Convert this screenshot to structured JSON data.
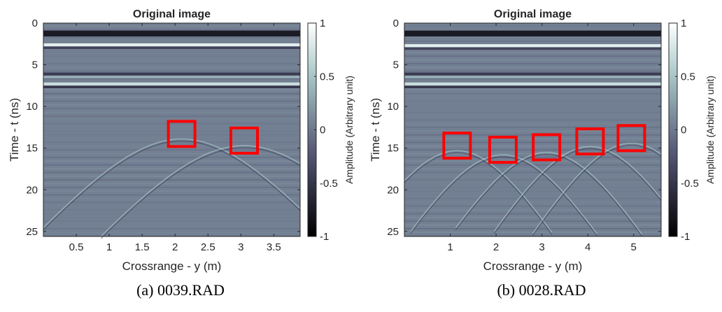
{
  "chart_data": [
    {
      "type": "heatmap",
      "title": "Original image",
      "xlabel": "Crossrange - y (m)",
      "ylabel": "Time - t (ns)",
      "colorbar_label": "Amplitude (Arbitrary unit)",
      "xlim": [
        0,
        3.9
      ],
      "ylim": [
        0,
        25.6
      ],
      "y_reversed": true,
      "x_ticks": [
        0.5,
        1,
        1.5,
        2,
        2.5,
        3,
        3.5
      ],
      "x_tick_labels": [
        "0.5",
        "1",
        "1.5",
        "2",
        "2.5",
        "3",
        "3.5"
      ],
      "y_ticks": [
        0,
        5,
        10,
        15,
        20,
        25
      ],
      "y_tick_labels": [
        "0",
        "5",
        "10",
        "15",
        "20",
        "25"
      ],
      "clim": [
        -1,
        1
      ],
      "colorbar_ticks": [
        1,
        0.5,
        0,
        -0.5,
        -1
      ],
      "colorbar_tick_labels": [
        "1",
        "0.5",
        "0",
        "-0.5",
        "-1"
      ],
      "colormap": "bone",
      "markers_color": "#ff0000",
      "target_markers": [
        {
          "x_center": 2.1,
          "t_center": 13.3
        },
        {
          "x_center": 3.05,
          "t_center": 14.1
        }
      ],
      "reflection_bands_t": [
        2.6,
        6.1,
        7.3
      ]
    },
    {
      "type": "heatmap",
      "title": "Original image",
      "xlabel": "Crossrange - y (m)",
      "ylabel": "Time - t (ns)",
      "colorbar_label": "Amplitude (Arbitrary unit)",
      "xlim": [
        0,
        5.6
      ],
      "ylim": [
        0,
        25.6
      ],
      "y_reversed": true,
      "x_ticks": [
        1,
        2,
        3,
        4,
        5
      ],
      "x_tick_labels": [
        "1",
        "2",
        "3",
        "4",
        "5"
      ],
      "y_ticks": [
        0,
        5,
        10,
        15,
        20,
        25
      ],
      "y_tick_labels": [
        "0",
        "5",
        "10",
        "15",
        "20",
        "25"
      ],
      "clim": [
        -1,
        1
      ],
      "colorbar_ticks": [
        1,
        0.5,
        0,
        -0.5,
        -1
      ],
      "colorbar_tick_labels": [
        "1",
        "0.5",
        "0",
        "-0.5",
        "-1"
      ],
      "colormap": "bone",
      "markers_color": "#ff0000",
      "target_markers": [
        {
          "x_center": 1.15,
          "t_center": 14.7
        },
        {
          "x_center": 2.15,
          "t_center": 15.2
        },
        {
          "x_center": 3.1,
          "t_center": 14.9
        },
        {
          "x_center": 4.05,
          "t_center": 14.2
        },
        {
          "x_center": 4.95,
          "t_center": 13.8
        }
      ],
      "reflection_bands_t": [
        2.7,
        6.1,
        7.3
      ]
    }
  ],
  "captions": [
    "(a) 0039.RAD",
    "(b) 0028.RAD"
  ]
}
